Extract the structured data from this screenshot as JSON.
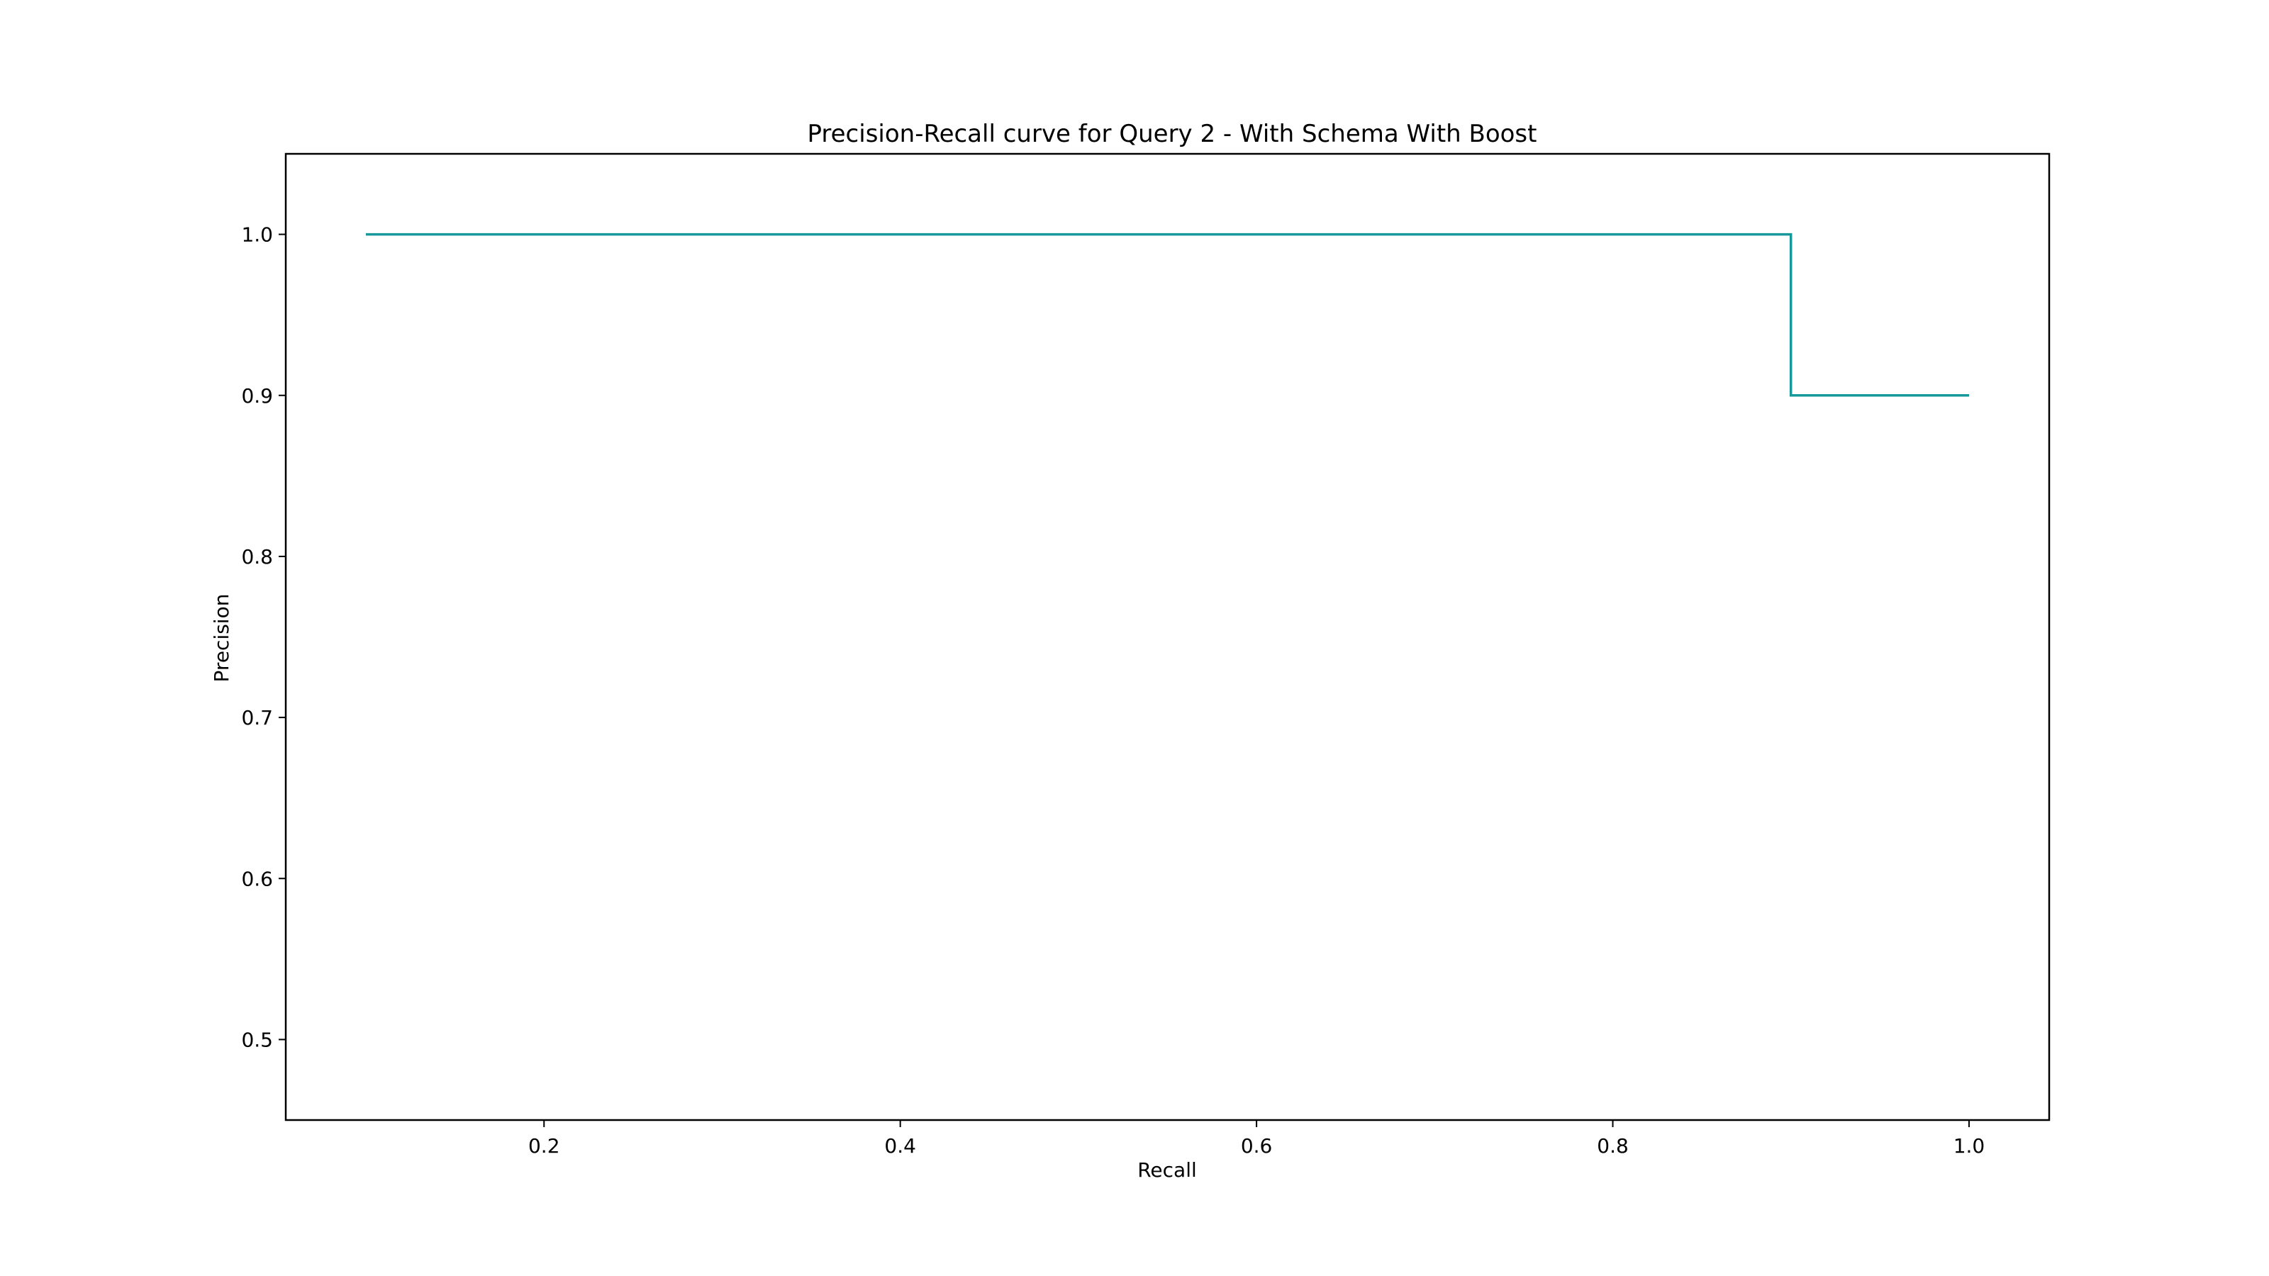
{
  "chart_data": {
    "type": "line",
    "title": "Precision-Recall curve for Query 2 - With Schema With Boost",
    "xlabel": "Recall",
    "ylabel": "Precision",
    "xlim": [
      0.055,
      1.045
    ],
    "ylim": [
      0.45,
      1.05
    ],
    "xticks": [
      0.2,
      0.4,
      0.6,
      0.8,
      1.0
    ],
    "xtick_labels": [
      "0.2",
      "0.4",
      "0.6",
      "0.8",
      "1.0"
    ],
    "yticks": [
      0.5,
      0.6,
      0.7,
      0.8,
      0.9,
      1.0
    ],
    "ytick_labels": [
      "0.5",
      "0.6",
      "0.7",
      "0.8",
      "0.9",
      "1.0"
    ],
    "grid": false,
    "series": [
      {
        "color": "#17989b",
        "step": "post",
        "x": [
          0.1,
          0.9,
          0.9,
          1.0
        ],
        "y": [
          1.0,
          1.0,
          0.9,
          0.9
        ]
      }
    ]
  }
}
